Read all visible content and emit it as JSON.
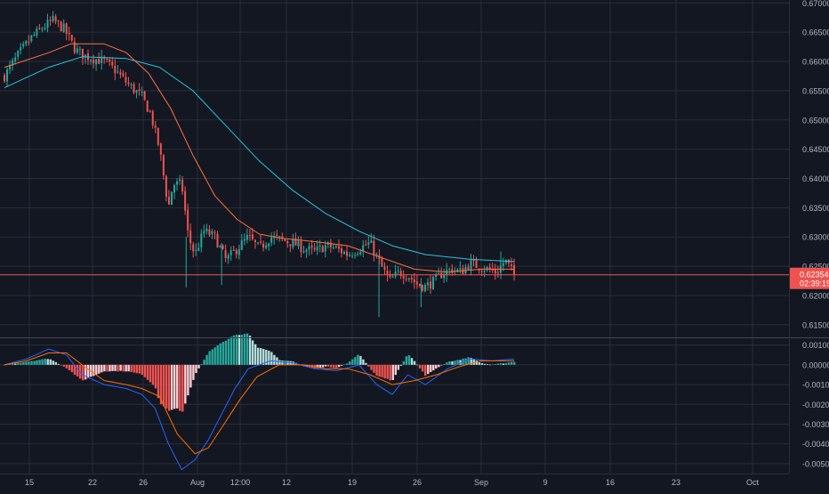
{
  "chart_data": [
    {
      "type": "candlestick",
      "title": "",
      "x_tick_labels": [
        "15",
        "22",
        "26",
        "Aug",
        "12:00",
        "12",
        "19",
        "26",
        "Sep",
        "9",
        "16",
        "23",
        "Oct"
      ],
      "y_tick_labels": [
        "0.67000",
        "0.66500",
        "0.66000",
        "0.65500",
        "0.65000",
        "0.64500",
        "0.64000",
        "0.63500",
        "0.63000",
        "0.62500",
        "0.62000",
        "0.61500"
      ],
      "ylim": [
        0.613,
        0.6705
      ],
      "last_price": {
        "label": "0.62354",
        "value": 0.62354
      },
      "countdown": {
        "label": "02:39:19"
      },
      "grid": true,
      "colors": {
        "up": "#26a69a",
        "down": "#ef5350",
        "ma_fast": "#ff7043",
        "ma_slow": "#26c6da",
        "price_line": "#ef5350"
      },
      "close_path": [
        [
          0,
          0.6575
        ],
        [
          0.06,
          0.661
        ],
        [
          0.12,
          0.664
        ],
        [
          0.18,
          0.666
        ],
        [
          0.22,
          0.667
        ],
        [
          0.27,
          0.6655
        ],
        [
          0.32,
          0.662
        ],
        [
          0.36,
          0.661
        ],
        [
          0.4,
          0.6605
        ],
        [
          0.45,
          0.66
        ],
        [
          0.5,
          0.6585
        ],
        [
          0.56,
          0.656
        ],
        [
          0.62,
          0.654
        ],
        [
          0.66,
          0.651
        ],
        [
          0.7,
          0.645
        ],
        [
          0.74,
          0.635
        ],
        [
          0.76,
          0.639
        ],
        [
          0.8,
          0.639
        ],
        [
          0.83,
          0.63
        ],
        [
          0.86,
          0.627
        ],
        [
          0.9,
          0.631
        ],
        [
          0.95,
          0.63
        ],
        [
          1.0,
          0.626
        ],
        [
          1.05,
          0.628
        ],
        [
          1.1,
          0.63
        ],
        [
          1.15,
          0.628
        ],
        [
          1.2,
          0.63
        ],
        [
          1.25,
          0.6295
        ],
        [
          1.3,
          0.629
        ],
        [
          1.35,
          0.628
        ],
        [
          1.4,
          0.6275
        ],
        [
          1.45,
          0.6285
        ],
        [
          1.5,
          0.628
        ],
        [
          1.55,
          0.627
        ],
        [
          1.6,
          0.628
        ],
        [
          1.65,
          0.629
        ],
        [
          1.7,
          0.625
        ],
        [
          1.74,
          0.6225
        ],
        [
          1.78,
          0.624
        ],
        [
          1.82,
          0.6235
        ],
        [
          1.86,
          0.622
        ],
        [
          1.9,
          0.6215
        ],
        [
          1.94,
          0.6225
        ],
        [
          1.98,
          0.624
        ],
        [
          2.02,
          0.6245
        ],
        [
          2.06,
          0.624
        ],
        [
          2.1,
          0.6255
        ],
        [
          2.14,
          0.625
        ],
        [
          2.18,
          0.6245
        ],
        [
          2.22,
          0.624
        ],
        [
          2.26,
          0.626
        ],
        [
          2.3,
          0.62354
        ]
      ],
      "ma_fast": [
        [
          0,
          0.659
        ],
        [
          0.2,
          0.6615
        ],
        [
          0.3,
          0.663
        ],
        [
          0.45,
          0.663
        ],
        [
          0.55,
          0.6615
        ],
        [
          0.65,
          0.658
        ],
        [
          0.75,
          0.652
        ],
        [
          0.85,
          0.644
        ],
        [
          0.95,
          0.637
        ],
        [
          1.05,
          0.633
        ],
        [
          1.15,
          0.6305
        ],
        [
          1.25,
          0.6298
        ],
        [
          1.4,
          0.6292
        ],
        [
          1.55,
          0.6285
        ],
        [
          1.7,
          0.6265
        ],
        [
          1.85,
          0.6245
        ],
        [
          2.0,
          0.624
        ],
        [
          2.15,
          0.6245
        ],
        [
          2.3,
          0.6245
        ]
      ],
      "ma_slow": [
        [
          0,
          0.6555
        ],
        [
          0.2,
          0.659
        ],
        [
          0.35,
          0.6608
        ],
        [
          0.55,
          0.6605
        ],
        [
          0.7,
          0.659
        ],
        [
          0.85,
          0.655
        ],
        [
          1.0,
          0.649
        ],
        [
          1.15,
          0.643
        ],
        [
          1.3,
          0.638
        ],
        [
          1.45,
          0.634
        ],
        [
          1.6,
          0.631
        ],
        [
          1.75,
          0.6285
        ],
        [
          1.9,
          0.627
        ],
        [
          2.1,
          0.6262
        ],
        [
          2.3,
          0.6258
        ]
      ]
    },
    {
      "type": "macd",
      "y_tick_labels": [
        "0.00100",
        "0.00000",
        "-0.00100",
        "-0.00200",
        "-0.00300",
        "-0.00400",
        "-0.00500"
      ],
      "ylim": [
        -0.0055,
        0.0013
      ],
      "colors": {
        "hist_up_strong": "#26a69a",
        "hist_up_weak": "#b2dfdb",
        "hist_down_strong": "#ef5350",
        "hist_down_weak": "#ffcdd2",
        "macd": "#2962ff",
        "signal": "#ff6d00"
      },
      "macd_line": [
        [
          0,
          0.0
        ],
        [
          0.1,
          0.0003
        ],
        [
          0.2,
          0.0008
        ],
        [
          0.28,
          0.0005
        ],
        [
          0.35,
          -0.0005
        ],
        [
          0.45,
          -0.001
        ],
        [
          0.55,
          -0.0012
        ],
        [
          0.62,
          -0.0015
        ],
        [
          0.68,
          -0.0022
        ],
        [
          0.74,
          -0.004
        ],
        [
          0.8,
          -0.0053
        ],
        [
          0.86,
          -0.0048
        ],
        [
          0.92,
          -0.0038
        ],
        [
          0.98,
          -0.0025
        ],
        [
          1.04,
          -0.0012
        ],
        [
          1.1,
          -0.0002
        ],
        [
          1.2,
          0.0002
        ],
        [
          1.3,
          0.0001
        ],
        [
          1.4,
          -0.0002
        ],
        [
          1.5,
          -0.0003
        ],
        [
          1.6,
          0.0
        ],
        [
          1.68,
          -0.001
        ],
        [
          1.75,
          -0.0015
        ],
        [
          1.82,
          -0.0005
        ],
        [
          1.9,
          -0.001
        ],
        [
          2.0,
          -0.0002
        ],
        [
          2.1,
          0.0003
        ],
        [
          2.2,
          0.0002
        ],
        [
          2.3,
          0.0003
        ]
      ],
      "signal_line": [
        [
          0,
          0.0
        ],
        [
          0.1,
          0.0002
        ],
        [
          0.2,
          0.0006
        ],
        [
          0.28,
          0.0006
        ],
        [
          0.35,
          0.0
        ],
        [
          0.45,
          -0.0008
        ],
        [
          0.55,
          -0.001
        ],
        [
          0.62,
          -0.0012
        ],
        [
          0.7,
          -0.0016
        ],
        [
          0.78,
          -0.0035
        ],
        [
          0.86,
          -0.0045
        ],
        [
          0.92,
          -0.0042
        ],
        [
          0.98,
          -0.0032
        ],
        [
          1.06,
          -0.0018
        ],
        [
          1.14,
          -0.0006
        ],
        [
          1.24,
          0.0
        ],
        [
          1.35,
          0.0
        ],
        [
          1.45,
          -0.0002
        ],
        [
          1.55,
          -0.0002
        ],
        [
          1.65,
          -0.0005
        ],
        [
          1.75,
          -0.001
        ],
        [
          1.85,
          -0.0008
        ],
        [
          1.95,
          -0.0005
        ],
        [
          2.05,
          -0.0001
        ],
        [
          2.15,
          0.0002
        ],
        [
          2.3,
          0.0002
        ]
      ]
    }
  ]
}
